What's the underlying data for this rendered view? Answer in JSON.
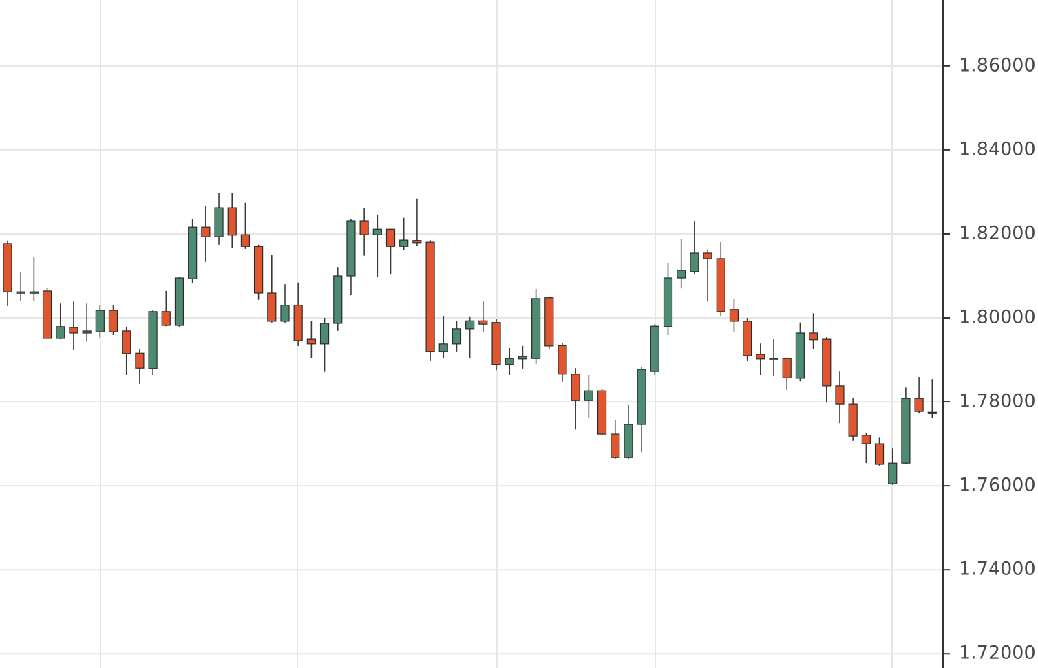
{
  "chart_data": {
    "type": "candlestick",
    "ylim": [
      1.7166,
      1.8757
    ],
    "yticks": [
      {
        "value": 1.72,
        "label": "1.72000"
      },
      {
        "value": 1.74,
        "label": "1.74000"
      },
      {
        "value": 1.76,
        "label": "1.76000"
      },
      {
        "value": 1.78,
        "label": "1.78000"
      },
      {
        "value": 1.8,
        "label": "1.80000"
      },
      {
        "value": 1.82,
        "label": "1.82000"
      },
      {
        "value": 1.84,
        "label": "1.84000"
      },
      {
        "value": 1.86,
        "label": "1.86000"
      }
    ],
    "grid": true,
    "up_color": "#4f8a72",
    "down_color": "#e0562f",
    "wick_color": "#3a3a3a",
    "open": [
      1.8177,
      1.8062,
      1.8062,
      1.8064,
      1.7951,
      1.7977,
      1.7964,
      1.7967,
      1.8018,
      1.7969,
      1.7916,
      1.7879,
      1.8015,
      1.7982,
      1.8093,
      1.8216,
      1.8193,
      1.8262,
      1.8198,
      1.817,
      1.8059,
      1.7992,
      1.803,
      1.7949,
      1.7938,
      1.7987,
      1.81,
      1.8231,
      1.8198,
      1.8211,
      1.817,
      1.8184,
      1.818,
      1.792,
      1.7938,
      1.7974,
      1.7993,
      1.7989,
      1.7889,
      1.7902,
      1.7903,
      1.8048,
      1.7934,
      1.7866,
      1.7803,
      1.7826,
      1.7723,
      1.7667,
      1.7746,
      1.7872,
      1.7979,
      1.8095,
      1.811,
      1.8154,
      1.8141,
      1.802,
      1.7992,
      1.7913,
      1.7903,
      1.7903,
      1.7856,
      1.7964,
      1.7949,
      1.7838,
      1.7795,
      1.772,
      1.77,
      1.7605,
      1.7654,
      1.7808,
      1.7775
    ],
    "high": [
      1.8184,
      1.811,
      1.8144,
      1.8072,
      1.8034,
      1.8039,
      1.8034,
      1.803,
      1.803,
      1.7979,
      1.7925,
      1.8018,
      1.8064,
      1.8098,
      1.8236,
      1.8266,
      1.8297,
      1.8297,
      1.8274,
      1.8174,
      1.8149,
      1.808,
      1.8084,
      1.7992,
      1.8,
      1.8121,
      1.8236,
      1.8261,
      1.8246,
      1.8212,
      1.8238,
      1.8284,
      1.8185,
      1.8005,
      1.7992,
      1.8002,
      1.8039,
      1.7998,
      1.7928,
      1.7933,
      1.8069,
      1.8051,
      1.7941,
      1.788,
      1.7864,
      1.783,
      1.7757,
      1.7792,
      1.7882,
      1.7985,
      1.8131,
      1.8187,
      1.8231,
      1.8162,
      1.818,
      1.8044,
      1.8,
      1.7939,
      1.7949,
      1.7905,
      1.7989,
      1.8011,
      1.7954,
      1.7872,
      1.781,
      1.7725,
      1.7716,
      1.769,
      1.7834,
      1.7859,
      1.7854
    ],
    "low": [
      1.8028,
      1.8041,
      1.8041,
      1.7951,
      1.7949,
      1.7923,
      1.7944,
      1.7953,
      1.7959,
      1.7864,
      1.7843,
      1.7864,
      1.798,
      1.7979,
      1.8082,
      1.8133,
      1.8174,
      1.8167,
      1.8164,
      1.8043,
      1.7989,
      1.7987,
      1.7933,
      1.7905,
      1.7871,
      1.7969,
      1.8054,
      1.8148,
      1.8098,
      1.8103,
      1.8162,
      1.8172,
      1.7897,
      1.7905,
      1.792,
      1.7905,
      1.7967,
      1.7875,
      1.7864,
      1.7879,
      1.789,
      1.7926,
      1.7848,
      1.7734,
      1.7762,
      1.772,
      1.7664,
      1.7664,
      1.768,
      1.7864,
      1.7959,
      1.807,
      1.8105,
      1.8039,
      1.8005,
      1.7966,
      1.7897,
      1.7864,
      1.7862,
      1.7828,
      1.7849,
      1.7925,
      1.7798,
      1.7749,
      1.7707,
      1.7654,
      1.7648,
      1.7602,
      1.7651,
      1.7772,
      1.7762
    ],
    "close": [
      1.8062,
      1.8062,
      1.8062,
      1.7951,
      1.7979,
      1.7964,
      1.7969,
      1.8018,
      1.7967,
      1.7915,
      1.788,
      1.8015,
      1.7982,
      1.8095,
      1.8216,
      1.8193,
      1.8262,
      1.8197,
      1.817,
      1.8059,
      1.7992,
      1.803,
      1.7946,
      1.7938,
      1.7987,
      1.81,
      1.8231,
      1.8198,
      1.8211,
      1.817,
      1.8185,
      1.8179,
      1.792,
      1.7938,
      1.7974,
      1.7993,
      1.7985,
      1.7889,
      1.7903,
      1.7908,
      1.8046,
      1.7933,
      1.7866,
      1.7803,
      1.7826,
      1.7723,
      1.7667,
      1.7746,
      1.7877,
      1.798,
      1.8095,
      1.8113,
      1.8154,
      1.8141,
      1.8015,
      1.7992,
      1.791,
      1.7902,
      1.7903,
      1.7857,
      1.7964,
      1.7948,
      1.7838,
      1.7795,
      1.7718,
      1.77,
      1.7651,
      1.7654,
      1.7808,
      1.7777,
      1.7775
    ]
  }
}
